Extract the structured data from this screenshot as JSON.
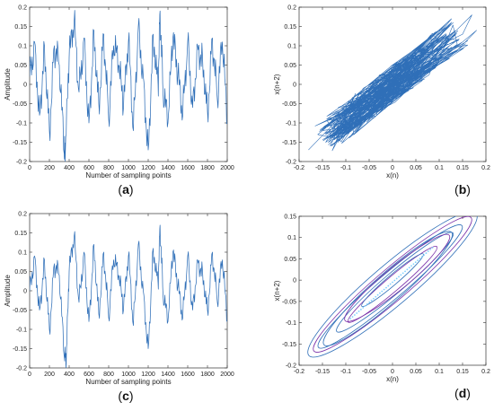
{
  "colors": {
    "line": "#2f6fb8",
    "accent": "#7a2fa8",
    "axis": "#333333",
    "background": "#ffffff"
  },
  "chart_data": [
    {
      "id": "a",
      "panel_label": {
        "open": "(",
        "letter": "a",
        "close": ")"
      },
      "type": "line",
      "xlabel": "Number of sampling points",
      "ylabel": "Amplitude",
      "xlim": [
        0,
        2000
      ],
      "ylim": [
        -0.2,
        0.2
      ],
      "xticks": [
        0,
        200,
        400,
        600,
        800,
        1000,
        1200,
        1400,
        1600,
        1800,
        2000
      ],
      "yticks": [
        -0.2,
        -0.15,
        -0.1,
        -0.05,
        0,
        0.05,
        0.1,
        0.15,
        0.2
      ],
      "ytick_labels": [
        "-0.2",
        "-0.15",
        "-0.1",
        "-0.05",
        "0",
        "0.05",
        "0.1",
        "0.15",
        "0.2"
      ],
      "grid": false,
      "x": [
        0,
        50,
        100,
        150,
        200,
        250,
        300,
        350,
        360,
        400,
        450,
        500,
        550,
        600,
        650,
        700,
        750,
        800,
        850,
        900,
        950,
        1000,
        1050,
        1100,
        1150,
        1200,
        1250,
        1300,
        1320,
        1350,
        1400,
        1450,
        1500,
        1550,
        1600,
        1650,
        1700,
        1750,
        1800,
        1850,
        1900,
        1950,
        2000
      ],
      "y": [
        0.02,
        0.11,
        -0.08,
        0.1,
        -0.12,
        0.1,
        0.05,
        -0.18,
        -0.19,
        0.07,
        0.16,
        -0.02,
        0.12,
        -0.1,
        0.14,
        -0.05,
        0.13,
        -0.09,
        0.1,
        0.05,
        -0.06,
        0.11,
        -0.12,
        0.15,
        0.02,
        -0.17,
        0.13,
        0.0,
        0.19,
        -0.02,
        -0.1,
        0.12,
        0.02,
        -0.08,
        0.11,
        -0.06,
        0.1,
        0.07,
        -0.07,
        0.12,
        -0.04,
        0.11,
        -0.1
      ]
    },
    {
      "id": "b",
      "panel_label": {
        "open": "(",
        "letter": "b",
        "close": ")"
      },
      "type": "line",
      "xlabel": "x(n)",
      "ylabel": "x(n+2)",
      "xlim": [
        -0.2,
        0.2
      ],
      "ylim": [
        -0.2,
        0.2
      ],
      "xticks": [
        -0.2,
        -0.15,
        -0.1,
        -0.05,
        0,
        0.05,
        0.1,
        0.15,
        0.2
      ],
      "xtick_labels": [
        "-0.2",
        "-0.15",
        "-0.1",
        "-0.05",
        "0",
        "0.05",
        "0.1",
        "0.15",
        "0.2"
      ],
      "yticks": [
        -0.2,
        -0.15,
        -0.1,
        -0.05,
        0,
        0.05,
        0.1,
        0.15,
        0.2
      ],
      "ytick_labels": [
        "-0.2",
        "-0.15",
        "-0.1",
        "-0.05",
        "0",
        "0.05",
        "0.1",
        "0.15",
        "0.2"
      ],
      "grid": false,
      "x": [
        -0.18,
        -0.14,
        -0.1,
        -0.06,
        -0.02,
        0.02,
        0.06,
        0.1,
        0.15,
        0.17,
        0.12,
        0.08,
        0.04,
        0.0,
        -0.04,
        -0.08,
        -0.12,
        -0.16,
        -0.12,
        -0.05,
        0.03,
        0.1,
        0.18,
        0.14,
        0.06,
        -0.02,
        -0.1,
        -0.15,
        -0.08,
        0.0,
        0.08,
        0.13
      ],
      "y": [
        -0.17,
        -0.12,
        -0.07,
        -0.04,
        0.0,
        0.03,
        0.06,
        0.1,
        0.13,
        0.18,
        0.12,
        0.06,
        0.02,
        -0.02,
        -0.06,
        -0.1,
        -0.14,
        -0.13,
        -0.09,
        -0.05,
        0.02,
        0.06,
        0.14,
        0.09,
        0.04,
        -0.03,
        -0.11,
        -0.12,
        -0.03,
        0.05,
        0.1,
        0.16
      ]
    },
    {
      "id": "c",
      "panel_label": {
        "open": "(",
        "letter": "c",
        "close": ")"
      },
      "type": "line",
      "xlabel": "Number of sampling points",
      "ylabel": "Amplitude",
      "xlim": [
        0,
        2000
      ],
      "ylim": [
        -0.2,
        0.2
      ],
      "xticks": [
        0,
        200,
        400,
        600,
        800,
        1000,
        1200,
        1400,
        1600,
        1800,
        2000
      ],
      "yticks": [
        -0.2,
        -0.15,
        -0.1,
        -0.05,
        0,
        0.05,
        0.1,
        0.15,
        0.2
      ],
      "ytick_labels": [
        "-0.2",
        "-0.15",
        "-0.1",
        "-0.05",
        "0",
        "0.05",
        "0.1",
        "0.15",
        "0.2"
      ],
      "grid": false,
      "x": [
        0,
        50,
        100,
        150,
        200,
        250,
        300,
        350,
        370,
        400,
        450,
        500,
        550,
        600,
        650,
        700,
        750,
        800,
        850,
        900,
        950,
        1000,
        1050,
        1100,
        1150,
        1200,
        1250,
        1300,
        1320,
        1350,
        1400,
        1450,
        1500,
        1550,
        1600,
        1650,
        1700,
        1750,
        1800,
        1850,
        1900,
        1950,
        2000
      ],
      "y": [
        0.0,
        0.09,
        -0.05,
        0.08,
        -0.1,
        0.07,
        0.04,
        -0.17,
        -0.19,
        0.05,
        0.14,
        -0.03,
        0.1,
        -0.08,
        0.12,
        -0.06,
        0.1,
        -0.07,
        0.08,
        0.04,
        -0.05,
        0.09,
        -0.09,
        0.12,
        0.0,
        -0.15,
        0.11,
        0.02,
        0.17,
        -0.01,
        -0.08,
        0.1,
        0.01,
        -0.07,
        0.09,
        -0.05,
        0.08,
        0.05,
        -0.05,
        0.1,
        -0.03,
        0.08,
        -0.08
      ]
    },
    {
      "id": "d",
      "panel_label": {
        "open": "(",
        "letter": "d",
        "close": ")"
      },
      "type": "line",
      "xlabel": "x(n)",
      "ylabel": "x(n+2)",
      "xlim": [
        -0.2,
        0.2
      ],
      "ylim": [
        -0.2,
        0.15
      ],
      "xticks": [
        -0.2,
        -0.15,
        -0.1,
        -0.05,
        0,
        0.05,
        0.1,
        0.15,
        0.2
      ],
      "xtick_labels": [
        "-0.2",
        "-0.15",
        "-0.1",
        "-0.05",
        "0",
        "0.05",
        "0.1",
        "0.15",
        "0.2"
      ],
      "yticks": [
        -0.2,
        -0.15,
        -0.1,
        -0.05,
        0,
        0.05,
        0.1,
        0.15
      ],
      "ytick_labels": [
        "-0.2",
        "-0.15",
        "-0.1",
        "-0.05",
        "0",
        "0.05",
        "0.1",
        "0.15"
      ],
      "grid": false,
      "ellipses": [
        {
          "cx": 0.0,
          "cy": -0.01,
          "rx": 0.245,
          "ry": 0.028,
          "angle_deg": 43
        },
        {
          "cx": 0.0,
          "cy": -0.01,
          "rx": 0.23,
          "ry": 0.022,
          "angle_deg": 43
        },
        {
          "cx": -0.005,
          "cy": -0.015,
          "rx": 0.21,
          "ry": 0.018,
          "angle_deg": 43
        },
        {
          "cx": 0.005,
          "cy": -0.005,
          "rx": 0.17,
          "ry": 0.014,
          "angle_deg": 43
        },
        {
          "cx": 0.0,
          "cy": -0.01,
          "rx": 0.13,
          "ry": 0.01,
          "angle_deg": 43
        },
        {
          "cx": 0.0,
          "cy": 0.0,
          "rx": 0.09,
          "ry": 0.007,
          "angle_deg": 43
        },
        {
          "cx": -0.01,
          "cy": -0.02,
          "rx": 0.19,
          "ry": 0.02,
          "angle_deg": 44
        },
        {
          "cx": 0.01,
          "cy": 0.005,
          "rx": 0.15,
          "ry": 0.016,
          "angle_deg": 42
        }
      ]
    }
  ]
}
